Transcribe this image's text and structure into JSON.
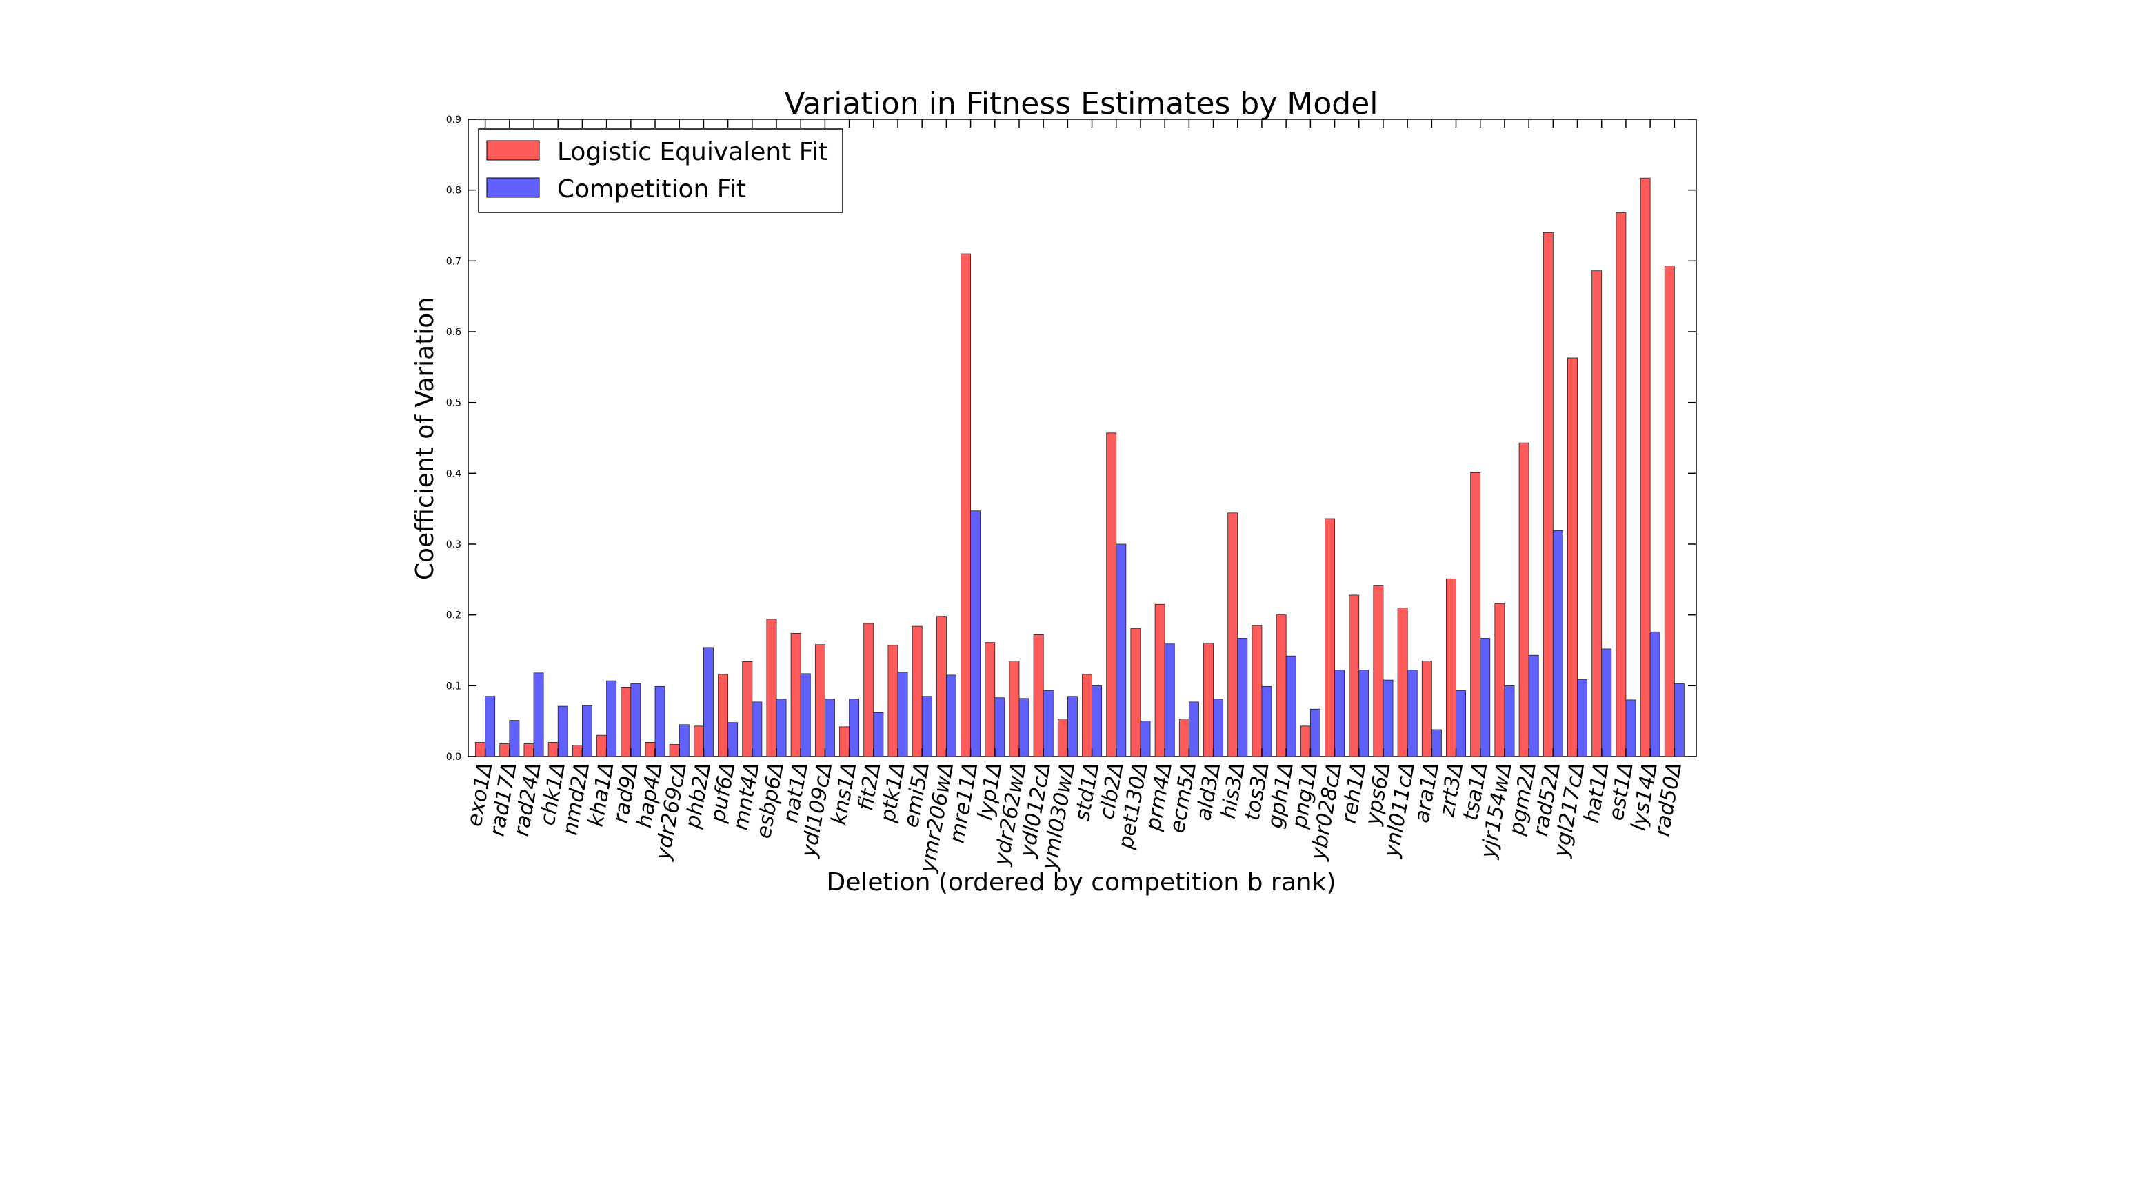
{
  "chart_data": {
    "type": "bar",
    "title": "Variation in Fitness Estimates by Model",
    "xlabel": "Deletion (ordered by competition b rank)",
    "ylabel": "Coefficient of Variation",
    "ylim": [
      0,
      0.9
    ],
    "yticks": [
      "0.0",
      "0.1",
      "0.2",
      "0.3",
      "0.4",
      "0.5",
      "0.6",
      "0.7",
      "0.8",
      "0.9"
    ],
    "legend_position": "top-left",
    "grid": false,
    "categories": [
      "exo1Δ",
      "rad17Δ",
      "rad24Δ",
      "chk1Δ",
      "nmd2Δ",
      "kha1Δ",
      "rad9Δ",
      "hap4Δ",
      "ydr269cΔ",
      "phb2Δ",
      "puf6Δ",
      "mnt4Δ",
      "esbp6Δ",
      "nat1Δ",
      "ydl109cΔ",
      "kns1Δ",
      "fit2Δ",
      "ptk1Δ",
      "emi5Δ",
      "ymr206wΔ",
      "mre11Δ",
      "lyp1Δ",
      "ydr262wΔ",
      "ydl012cΔ",
      "yml030wΔ",
      "std1Δ",
      "clb2Δ",
      "pet130Δ",
      "prm4Δ",
      "ecm5Δ",
      "ald3Δ",
      "his3Δ",
      "tos3Δ",
      "gph1Δ",
      "png1Δ",
      "ybr028cΔ",
      "reh1Δ",
      "yps6Δ",
      "ynl011cΔ",
      "ara1Δ",
      "zrt3Δ",
      "tsa1Δ",
      "yjr154wΔ",
      "pgm2Δ",
      "rad52Δ",
      "ygl217cΔ",
      "hat1Δ",
      "est1Δ",
      "lys14Δ",
      "rad50Δ"
    ],
    "series": [
      {
        "name": "Logistic Equivalent Fit",
        "color": "#ff5b5b",
        "values": [
          0.02,
          0.018,
          0.018,
          0.02,
          0.016,
          0.03,
          0.098,
          0.02,
          0.017,
          0.043,
          0.116,
          0.134,
          0.194,
          0.174,
          0.158,
          0.042,
          0.188,
          0.157,
          0.184,
          0.198,
          0.71,
          0.161,
          0.135,
          0.172,
          0.053,
          0.116,
          0.457,
          0.181,
          0.215,
          0.053,
          0.16,
          0.344,
          0.185,
          0.2,
          0.043,
          0.336,
          0.228,
          0.242,
          0.21,
          0.135,
          0.251,
          0.401,
          0.216,
          0.443,
          0.74,
          0.563,
          0.686,
          0.768,
          0.817,
          0.693
        ]
      },
      {
        "name": "Competition Fit",
        "color": "#6060ff",
        "values": [
          0.085,
          0.051,
          0.118,
          0.071,
          0.072,
          0.107,
          0.103,
          0.099,
          0.045,
          0.154,
          0.048,
          0.077,
          0.081,
          0.117,
          0.081,
          0.081,
          0.062,
          0.119,
          0.085,
          0.115,
          0.347,
          0.083,
          0.082,
          0.093,
          0.085,
          0.1,
          0.3,
          0.05,
          0.159,
          0.077,
          0.081,
          0.167,
          0.099,
          0.142,
          0.067,
          0.122,
          0.122,
          0.108,
          0.122,
          0.038,
          0.093,
          0.167,
          0.1,
          0.143,
          0.319,
          0.109,
          0.152,
          0.08,
          0.176,
          0.103
        ]
      }
    ]
  }
}
